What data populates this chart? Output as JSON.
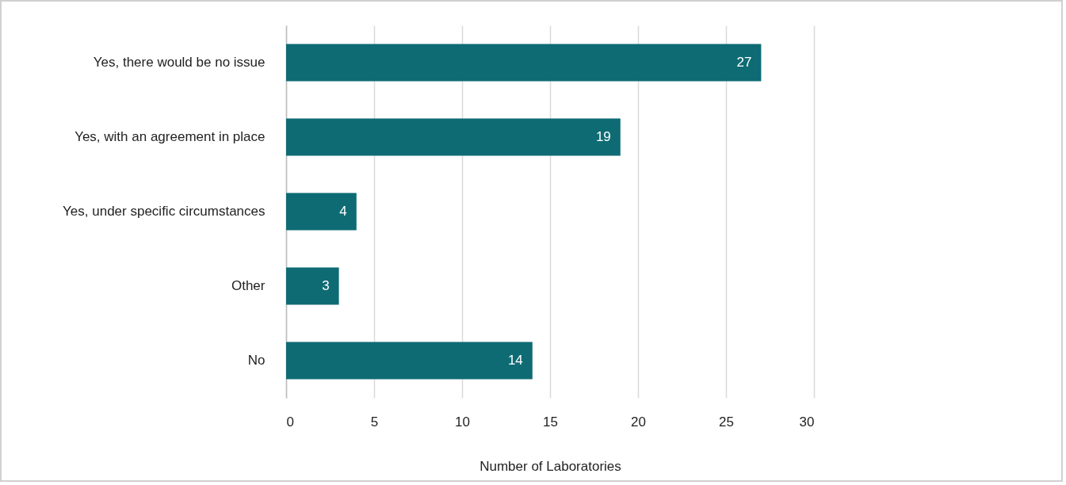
{
  "chart_data": {
    "type": "bar",
    "orientation": "horizontal",
    "xlabel": "Number of Laboratories",
    "categories": [
      "Yes, there would be no issue",
      "Yes, with an agreement in place",
      "Yes, under specific circumstances",
      "Other",
      "No"
    ],
    "values": [
      27,
      19,
      4,
      3,
      14
    ],
    "color": "#0e6b74",
    "xlim": [
      0,
      30
    ],
    "xticks": [
      0,
      5,
      10,
      15,
      20,
      25,
      30
    ],
    "grid": "x",
    "data_labels": true
  }
}
